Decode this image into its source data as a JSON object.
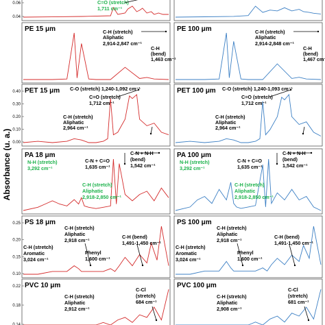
{
  "figure": {
    "y_axis_label": "Absorbance (u. a.)",
    "colors": {
      "left": "#d42a2a",
      "right": "#3b7fc4",
      "highlight": "#1cb24b"
    }
  },
  "chart_data": [
    {
      "type": "line",
      "title": "",
      "color": "left",
      "ylim": [
        0,
        0.08
      ],
      "yticks": [
        "0.06",
        "0.04"
      ],
      "series": [
        {
          "x": [
            0,
            0.2,
            0.4,
            0.6,
            0.62,
            0.65,
            0.7,
            0.72,
            0.75,
            0.78,
            0.8,
            0.82,
            0.85,
            0.88,
            0.9,
            0.93,
            0.96,
            1
          ],
          "y": [
            0.01,
            0.012,
            0.015,
            0.02,
            0.08,
            0.03,
            0.04,
            0.07,
            0.09,
            0.05,
            0.06,
            0.075,
            0.04,
            0.05,
            0.03,
            0.04,
            0.03,
            0.03
          ]
        }
      ],
      "annotations": [
        {
          "text": "C=O (stretch)",
          "color": "green"
        },
        {
          "text": "1,711 cm⁻¹",
          "color": "green"
        }
      ]
    },
    {
      "type": "line",
      "title": "",
      "color": "right",
      "ylim": [
        0,
        0.08
      ],
      "yticks": [],
      "series": [
        {
          "x": [
            0,
            0.2,
            0.4,
            0.5,
            0.55,
            0.6,
            0.65,
            0.7,
            0.75,
            0.8,
            0.85,
            0.88,
            0.92,
            0.95,
            1
          ],
          "y": [
            0.01,
            0.012,
            0.015,
            0.02,
            0.08,
            0.04,
            0.055,
            0.05,
            0.07,
            0.05,
            0.06,
            0.045,
            0.04,
            0.035,
            0.03
          ]
        }
      ],
      "annotations": []
    },
    {
      "type": "line",
      "title": "PE 15 μm",
      "color": "left",
      "yticks": [],
      "series": [
        {
          "x": [
            0,
            0.2,
            0.3,
            0.35,
            0.37,
            0.4,
            0.45,
            0.5,
            0.55,
            0.6,
            0.7,
            0.8,
            0.85,
            0.9,
            1
          ],
          "y": [
            0.02,
            0.02,
            0.03,
            0.9,
            0.05,
            0.7,
            0.03,
            0.02,
            0.02,
            0.02,
            0.25,
            0.04,
            0.06,
            0.03,
            0.02
          ]
        }
      ],
      "annotations": [
        {
          "text": "C-H (stretch)",
          "color": "black"
        },
        {
          "text": "Aliphatic",
          "color": "black"
        },
        {
          "text": "2,914-2,847 cm⁻¹",
          "color": "black"
        },
        {
          "text": "C-H",
          "color": "black"
        },
        {
          "text": "(bend)",
          "color": "black"
        },
        {
          "text": "1,463 cm⁻¹",
          "color": "black"
        }
      ]
    },
    {
      "type": "line",
      "title": "PE 100 μm",
      "color": "right",
      "yticks": [],
      "series": [
        {
          "x": [
            0,
            0.2,
            0.3,
            0.35,
            0.37,
            0.4,
            0.45,
            0.5,
            0.55,
            0.6,
            0.7,
            0.8,
            0.85,
            0.9,
            1
          ],
          "y": [
            0.02,
            0.02,
            0.03,
            0.85,
            0.05,
            0.7,
            0.03,
            0.02,
            0.02,
            0.02,
            0.3,
            0.04,
            0.06,
            0.03,
            0.02
          ]
        }
      ],
      "annotations": [
        {
          "text": "C-H (stretch)",
          "color": "black"
        },
        {
          "text": "Aliphatic",
          "color": "black"
        },
        {
          "text": "2,914-2,848 cm⁻¹",
          "color": "black"
        },
        {
          "text": "C-H",
          "color": "black"
        },
        {
          "text": "(bend)",
          "color": "black"
        },
        {
          "text": "1,467 cm⁻¹",
          "color": "black"
        }
      ]
    },
    {
      "type": "line",
      "title": "PET 15 μm",
      "color": "left",
      "yticks": [
        "0.40",
        "0.30",
        "0.20",
        "0.10",
        "0.00"
      ],
      "ylim": [
        0,
        0.4
      ],
      "series": [
        {
          "x": [
            0,
            0.1,
            0.2,
            0.3,
            0.35,
            0.4,
            0.45,
            0.5,
            0.55,
            0.58,
            0.6,
            0.62,
            0.65,
            0.7,
            0.73,
            0.75,
            0.78,
            0.8,
            0.85,
            0.9,
            0.95,
            1
          ],
          "y": [
            0.02,
            0.03,
            0.02,
            0.03,
            0.05,
            0.04,
            0.02,
            0.02,
            0.03,
            0.05,
            0.36,
            0.08,
            0.1,
            0.2,
            0.38,
            0.36,
            0.39,
            0.2,
            0.15,
            0.17,
            0.1,
            0.08
          ]
        }
      ],
      "annotations": [
        {
          "text": "C-O (stretch) 1,240-1,092 cm⁻¹",
          "color": "black"
        },
        {
          "text": "C=O (stretch)",
          "color": "black"
        },
        {
          "text": "1,712 cm⁻¹",
          "color": "black"
        },
        {
          "text": "C-H (stretch)",
          "color": "black"
        },
        {
          "text": "Aliphatic",
          "color": "black"
        },
        {
          "text": "2,964 cm⁻¹",
          "color": "black"
        }
      ]
    },
    {
      "type": "line",
      "title": "PET 100 μm",
      "color": "right",
      "yticks": [],
      "ylim": [
        0,
        0.4
      ],
      "series": [
        {
          "x": [
            0,
            0.1,
            0.2,
            0.3,
            0.35,
            0.4,
            0.45,
            0.5,
            0.55,
            0.58,
            0.6,
            0.62,
            0.65,
            0.7,
            0.73,
            0.75,
            0.78,
            0.8,
            0.85,
            0.9,
            0.95,
            1
          ],
          "y": [
            0.02,
            0.03,
            0.02,
            0.03,
            0.05,
            0.04,
            0.02,
            0.02,
            0.03,
            0.05,
            0.34,
            0.08,
            0.12,
            0.22,
            0.37,
            0.35,
            0.39,
            0.22,
            0.16,
            0.18,
            0.1,
            0.07
          ]
        }
      ],
      "annotations": [
        {
          "text": "C-O (stretch) 1,240-1,093 cm⁻¹",
          "color": "black"
        },
        {
          "text": "C=O (stretch)",
          "color": "black"
        },
        {
          "text": "1,712 cm⁻¹",
          "color": "black"
        },
        {
          "text": "C-H (stretch)",
          "color": "black"
        },
        {
          "text": "Aliphatic",
          "color": "black"
        },
        {
          "text": "2,964 cm⁻¹",
          "color": "black"
        }
      ]
    },
    {
      "type": "line",
      "title": "PA 18 μm",
      "color": "left",
      "yticks": [],
      "series": [
        {
          "x": [
            0,
            0.1,
            0.15,
            0.2,
            0.25,
            0.3,
            0.35,
            0.38,
            0.4,
            0.42,
            0.45,
            0.5,
            0.55,
            0.6,
            0.62,
            0.64,
            0.66,
            0.7,
            0.75,
            0.8,
            0.85,
            0.9,
            0.95,
            1
          ],
          "y": [
            0.05,
            0.1,
            0.15,
            0.2,
            0.15,
            0.12,
            0.22,
            0.15,
            0.25,
            0.12,
            0.1,
            0.08,
            0.1,
            0.12,
            0.85,
            0.15,
            0.78,
            0.3,
            0.2,
            0.3,
            0.35,
            0.2,
            0.4,
            0.25
          ]
        }
      ],
      "annotations": [
        {
          "text": "N-H (stretch)",
          "color": "green"
        },
        {
          "text": "3,292 cm⁻¹",
          "color": "green"
        },
        {
          "text": "C-N + C=O",
          "color": "black"
        },
        {
          "text": "1,635 cm⁻¹",
          "color": "black"
        },
        {
          "text": "C-N + N-H",
          "color": "black"
        },
        {
          "text": "(bend)",
          "color": "black"
        },
        {
          "text": "1,542 cm⁻¹",
          "color": "black"
        },
        {
          "text": "C-H (stretch)",
          "color": "green"
        },
        {
          "text": "Aliphatic",
          "color": "green"
        },
        {
          "text": "2,918-2,850 cm⁻¹",
          "color": "green"
        }
      ]
    },
    {
      "type": "line",
      "title": "PA 100 μm",
      "color": "right",
      "yticks": [],
      "series": [
        {
          "x": [
            0,
            0.1,
            0.15,
            0.2,
            0.25,
            0.3,
            0.35,
            0.38,
            0.4,
            0.42,
            0.45,
            0.5,
            0.55,
            0.6,
            0.62,
            0.64,
            0.66,
            0.7,
            0.75,
            0.8,
            0.85,
            0.9,
            0.95,
            1
          ],
          "y": [
            0.05,
            0.1,
            0.2,
            0.25,
            0.15,
            0.35,
            0.2,
            0.45,
            0.15,
            0.1,
            0.08,
            0.1,
            0.12,
            0.7,
            0.1,
            0.78,
            0.15,
            0.3,
            0.2,
            0.35,
            0.2,
            0.25,
            0.1,
            0.05
          ]
        }
      ],
      "annotations": [
        {
          "text": "N-H (stretch)",
          "color": "green"
        },
        {
          "text": "3,292 cm⁻¹",
          "color": "green"
        },
        {
          "text": "C-N + C=O",
          "color": "black"
        },
        {
          "text": "1,635 cm⁻¹",
          "color": "black"
        },
        {
          "text": "C-N + N-H",
          "color": "black"
        },
        {
          "text": "(bend)",
          "color": "black"
        },
        {
          "text": "1,542 cm⁻¹",
          "color": "black"
        },
        {
          "text": "C-H (stretch)",
          "color": "green"
        },
        {
          "text": "Aliphatic",
          "color": "green"
        },
        {
          "text": "2,918-2,850 cm⁻¹",
          "color": "green"
        }
      ]
    },
    {
      "type": "line",
      "title": "PS 18 μm",
      "color": "left",
      "yticks": [
        "0.25",
        "0.20",
        "0.15",
        "0.10"
      ],
      "ylim": [
        0.08,
        0.27
      ],
      "series": [
        {
          "x": [
            0,
            0.1,
            0.2,
            0.3,
            0.35,
            0.38,
            0.4,
            0.45,
            0.5,
            0.55,
            0.6,
            0.63,
            0.66,
            0.7,
            0.75,
            0.8,
            0.85,
            0.88,
            0.92,
            0.95,
            1
          ],
          "y": [
            0.09,
            0.09,
            0.1,
            0.1,
            0.12,
            0.11,
            0.1,
            0.1,
            0.1,
            0.1,
            0.11,
            0.1,
            0.12,
            0.15,
            0.12,
            0.16,
            0.13,
            0.2,
            0.14,
            0.26,
            0.12
          ]
        }
      ],
      "annotations": [
        {
          "text": "C-H (stretch)",
          "color": "black"
        },
        {
          "text": "Aliphatic",
          "color": "black"
        },
        {
          "text": "2,918 cm⁻¹",
          "color": "black"
        },
        {
          "text": "C-H (bend)",
          "color": "black"
        },
        {
          "text": "1,491-1,450 cm⁻¹",
          "color": "black"
        },
        {
          "text": "C-H (stretch)",
          "color": "black"
        },
        {
          "text": "Aromatic",
          "color": "black"
        },
        {
          "text": "3,024 cm⁻¹",
          "color": "black"
        },
        {
          "text": "Phenyl",
          "color": "black"
        },
        {
          "text": "1,600 cm⁻¹",
          "color": "black"
        }
      ]
    },
    {
      "type": "line",
      "title": "PS 100 μm",
      "color": "right",
      "yticks": [],
      "ylim": [
        0.08,
        0.27
      ],
      "series": [
        {
          "x": [
            0,
            0.1,
            0.2,
            0.3,
            0.35,
            0.38,
            0.4,
            0.45,
            0.5,
            0.55,
            0.6,
            0.63,
            0.66,
            0.7,
            0.75,
            0.8,
            0.85,
            0.88,
            0.92,
            0.95,
            1
          ],
          "y": [
            0.09,
            0.09,
            0.1,
            0.1,
            0.13,
            0.11,
            0.1,
            0.1,
            0.1,
            0.1,
            0.11,
            0.1,
            0.12,
            0.14,
            0.12,
            0.15,
            0.13,
            0.18,
            0.14,
            0.24,
            0.12
          ]
        }
      ],
      "annotations": [
        {
          "text": "C-H (stretch)",
          "color": "black"
        },
        {
          "text": "Aliphatic",
          "color": "black"
        },
        {
          "text": "2,918 cm⁻¹",
          "color": "black"
        },
        {
          "text": "C-H (bend)",
          "color": "black"
        },
        {
          "text": "1,491-1,450 cm⁻¹",
          "color": "black"
        },
        {
          "text": "C-H (stretch)",
          "color": "black"
        },
        {
          "text": "Aromatic",
          "color": "black"
        },
        {
          "text": "3,024 cm⁻¹",
          "color": "black"
        },
        {
          "text": "Phenyl",
          "color": "black"
        },
        {
          "text": "1,600 cm⁻¹",
          "color": "black"
        }
      ]
    },
    {
      "type": "line",
      "title": "PVC 10 μm",
      "color": "left",
      "yticks": [
        "0.22",
        "0.18",
        "0.14"
      ],
      "ylim": [
        0.1,
        0.24
      ],
      "series": [
        {
          "x": [
            0,
            0.2,
            0.4,
            0.5,
            0.55,
            0.6,
            0.65,
            0.7,
            0.75,
            0.8,
            0.85,
            0.9,
            0.95,
            1
          ],
          "y": [
            0.1,
            0.1,
            0.1,
            0.1,
            0.11,
            0.1,
            0.12,
            0.13,
            0.11,
            0.14,
            0.13,
            0.17,
            0.12,
            0.24
          ]
        }
      ],
      "annotations": [
        {
          "text": "C-H (stretch)",
          "color": "black"
        },
        {
          "text": "Aliphatic",
          "color": "black"
        },
        {
          "text": "2,912 cm⁻¹",
          "color": "black"
        },
        {
          "text": "C-Cl",
          "color": "black"
        },
        {
          "text": "(stretch)",
          "color": "black"
        },
        {
          "text": "684 cm⁻¹",
          "color": "black"
        }
      ]
    },
    {
      "type": "line",
      "title": "PVC 100 μm",
      "color": "right",
      "yticks": [],
      "ylim": [
        0.1,
        0.24
      ],
      "series": [
        {
          "x": [
            0,
            0.2,
            0.4,
            0.5,
            0.55,
            0.6,
            0.65,
            0.7,
            0.75,
            0.8,
            0.85,
            0.9,
            0.95,
            1
          ],
          "y": [
            0.1,
            0.1,
            0.1,
            0.1,
            0.11,
            0.1,
            0.12,
            0.13,
            0.11,
            0.14,
            0.13,
            0.16,
            0.12,
            0.22
          ]
        }
      ],
      "annotations": [
        {
          "text": "C-H (stretch)",
          "color": "black"
        },
        {
          "text": "Aliphatic",
          "color": "black"
        },
        {
          "text": "2,908 cm⁻¹",
          "color": "black"
        },
        {
          "text": "C-Cl",
          "color": "black"
        },
        {
          "text": "(stretch)",
          "color": "black"
        },
        {
          "text": "681 cm⁻¹",
          "color": "black"
        }
      ]
    }
  ]
}
